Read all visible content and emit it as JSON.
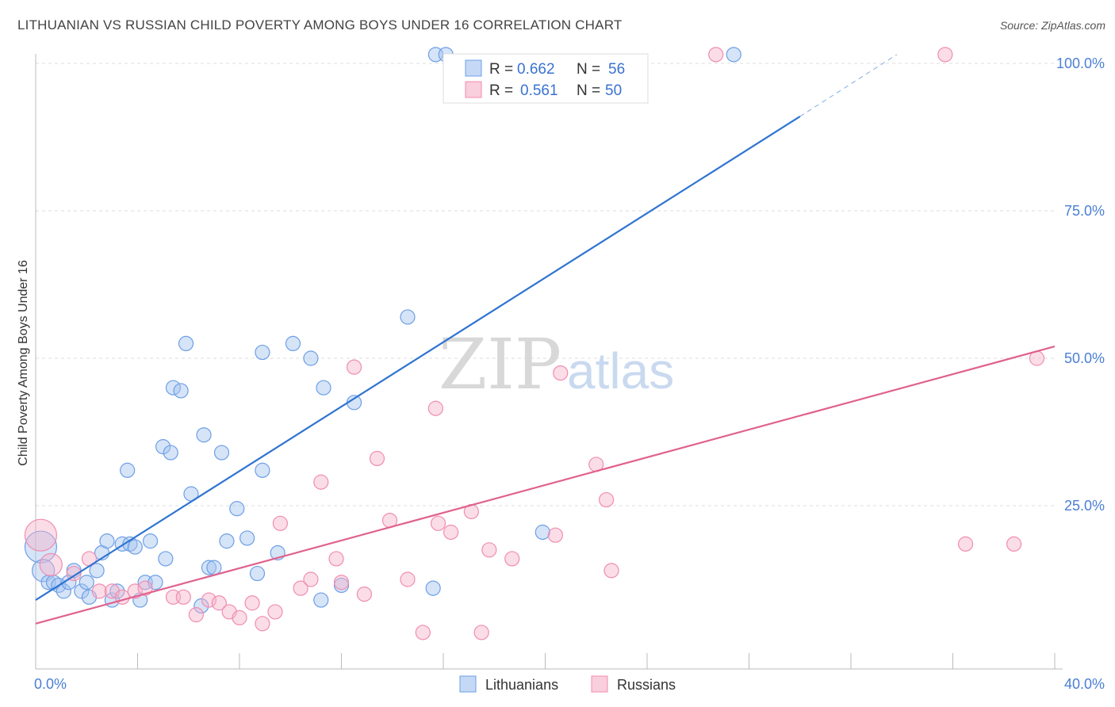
{
  "title": "LITHUANIAN VS RUSSIAN CHILD POVERTY AMONG BOYS UNDER 16 CORRELATION CHART",
  "source": "Source: ZipAtlas.com",
  "watermark": {
    "zip": "ZIP",
    "atlas": "atlas"
  },
  "chart_data": {
    "type": "scatter",
    "title": "LITHUANIAN VS RUSSIAN CHILD POVERTY AMONG BOYS UNDER 16 CORRELATION CHART",
    "xlabel": "",
    "ylabel": "Child Poverty Among Boys Under 16",
    "xlim": [
      0,
      40
    ],
    "ylim": [
      0,
      105
    ],
    "x_tick_labels": [
      "0.0%",
      "40.0%"
    ],
    "y_ticks": [
      25,
      50,
      75,
      100
    ],
    "y_tick_labels": [
      "25.0%",
      "50.0%",
      "75.0%",
      "100.0%"
    ],
    "grid": true,
    "legend_placement": "top-center",
    "legend": [
      {
        "name": "Lithuanians",
        "r_label": "R =",
        "r": "0.662",
        "n_label": "N =",
        "n": "56",
        "color": "#6d9fe6"
      },
      {
        "name": "Russians",
        "r_label": "R =",
        "r": "0.561",
        "n_label": "N =",
        "n": "50",
        "color": "#f08db0"
      }
    ],
    "series": [
      {
        "name": "Lithuanians",
        "color": "#6d9fe6",
        "trend_color": "#2f74d0",
        "trend": {
          "x": [
            0,
            30
          ],
          "y": [
            9,
            91
          ],
          "dashed_to": [
            33.8,
            101.5
          ]
        },
        "points": [
          [
            0.2,
            18,
            20
          ],
          [
            0.3,
            14,
            14
          ],
          [
            0.5,
            12,
            9
          ],
          [
            0.7,
            12,
            9
          ],
          [
            0.9,
            11.5,
            9
          ],
          [
            1.1,
            10.5,
            9
          ],
          [
            1.3,
            12,
            9
          ],
          [
            1.5,
            14,
            9
          ],
          [
            1.8,
            10.5,
            9
          ],
          [
            2.0,
            12,
            9
          ],
          [
            2.1,
            9.5,
            9
          ],
          [
            2.4,
            14,
            9
          ],
          [
            2.6,
            17,
            9
          ],
          [
            2.8,
            19,
            9
          ],
          [
            3.0,
            9,
            9
          ],
          [
            3.2,
            10.5,
            9
          ],
          [
            3.4,
            18.5,
            9
          ],
          [
            3.6,
            31,
            9
          ],
          [
            3.7,
            18.5,
            9
          ],
          [
            3.9,
            18,
            9
          ],
          [
            4.1,
            9,
            9
          ],
          [
            4.3,
            12,
            9
          ],
          [
            4.5,
            19,
            9
          ],
          [
            4.7,
            12,
            9
          ],
          [
            5.0,
            35,
            9
          ],
          [
            5.1,
            16,
            9
          ],
          [
            5.3,
            34,
            9
          ],
          [
            5.4,
            45,
            9
          ],
          [
            5.7,
            44.5,
            9
          ],
          [
            5.9,
            52.5,
            9
          ],
          [
            6.1,
            27,
            9
          ],
          [
            6.5,
            8,
            9
          ],
          [
            6.6,
            37,
            9
          ],
          [
            6.8,
            14.5,
            9
          ],
          [
            7.0,
            14.5,
            9
          ],
          [
            7.3,
            34,
            9
          ],
          [
            7.5,
            19,
            9
          ],
          [
            7.9,
            24.5,
            9
          ],
          [
            8.3,
            19.5,
            9
          ],
          [
            8.7,
            13.5,
            9
          ],
          [
            8.9,
            31,
            9
          ],
          [
            8.9,
            51,
            9
          ],
          [
            9.5,
            17,
            9
          ],
          [
            10.1,
            52.5,
            9
          ],
          [
            10.8,
            50,
            9
          ],
          [
            11.2,
            9,
            9
          ],
          [
            11.3,
            45,
            9
          ],
          [
            12.0,
            11.5,
            9
          ],
          [
            12.5,
            42.5,
            9
          ],
          [
            14.6,
            57,
            9
          ],
          [
            15.6,
            11,
            9
          ],
          [
            15.7,
            101.5,
            9
          ],
          [
            16.1,
            101.5,
            9
          ],
          [
            19.9,
            20.5,
            9
          ],
          [
            27.4,
            101.5,
            9
          ]
        ]
      },
      {
        "name": "Russians",
        "color": "#f08db0",
        "trend_color": "#e0628e",
        "trend": {
          "x": [
            0,
            40
          ],
          "y": [
            5,
            52
          ]
        },
        "points": [
          [
            0.2,
            20,
            20
          ],
          [
            0.6,
            15,
            14
          ],
          [
            1.5,
            13.5,
            9
          ],
          [
            2.1,
            16,
            9
          ],
          [
            2.5,
            10.5,
            9
          ],
          [
            3.0,
            10.5,
            9
          ],
          [
            3.4,
            9.5,
            9
          ],
          [
            3.9,
            10.5,
            9
          ],
          [
            4.3,
            11,
            9
          ],
          [
            5.4,
            9.5,
            9
          ],
          [
            5.8,
            9.5,
            9
          ],
          [
            6.3,
            6.5,
            9
          ],
          [
            6.8,
            9,
            9
          ],
          [
            7.2,
            8.5,
            9
          ],
          [
            7.6,
            7,
            9
          ],
          [
            8.0,
            6,
            9
          ],
          [
            8.5,
            8.5,
            9
          ],
          [
            8.9,
            5,
            9
          ],
          [
            9.4,
            7,
            9
          ],
          [
            9.6,
            22,
            9
          ],
          [
            10.4,
            11,
            9
          ],
          [
            10.8,
            12.5,
            9
          ],
          [
            11.2,
            29,
            9
          ],
          [
            11.8,
            16,
            9
          ],
          [
            12.0,
            12,
            9
          ],
          [
            12.5,
            48.5,
            9
          ],
          [
            12.9,
            10,
            9
          ],
          [
            13.4,
            33,
            9
          ],
          [
            13.9,
            22.5,
            9
          ],
          [
            14.6,
            12.5,
            9
          ],
          [
            15.2,
            3.5,
            9
          ],
          [
            15.7,
            41.5,
            9
          ],
          [
            15.8,
            22,
            9
          ],
          [
            16.3,
            20.5,
            9
          ],
          [
            17.1,
            24,
            9
          ],
          [
            17.5,
            3.5,
            9
          ],
          [
            17.8,
            17.5,
            9
          ],
          [
            18.7,
            16,
            9
          ],
          [
            20.4,
            20,
            9
          ],
          [
            20.6,
            47.5,
            9
          ],
          [
            22.0,
            32,
            9
          ],
          [
            22.4,
            26,
            9
          ],
          [
            22.6,
            14,
            9
          ],
          [
            26.7,
            101.5,
            9
          ],
          [
            35.7,
            101.5,
            9
          ],
          [
            36.5,
            18.5,
            9
          ],
          [
            38.4,
            18.5,
            9
          ],
          [
            39.3,
            50,
            9
          ]
        ]
      }
    ]
  }
}
